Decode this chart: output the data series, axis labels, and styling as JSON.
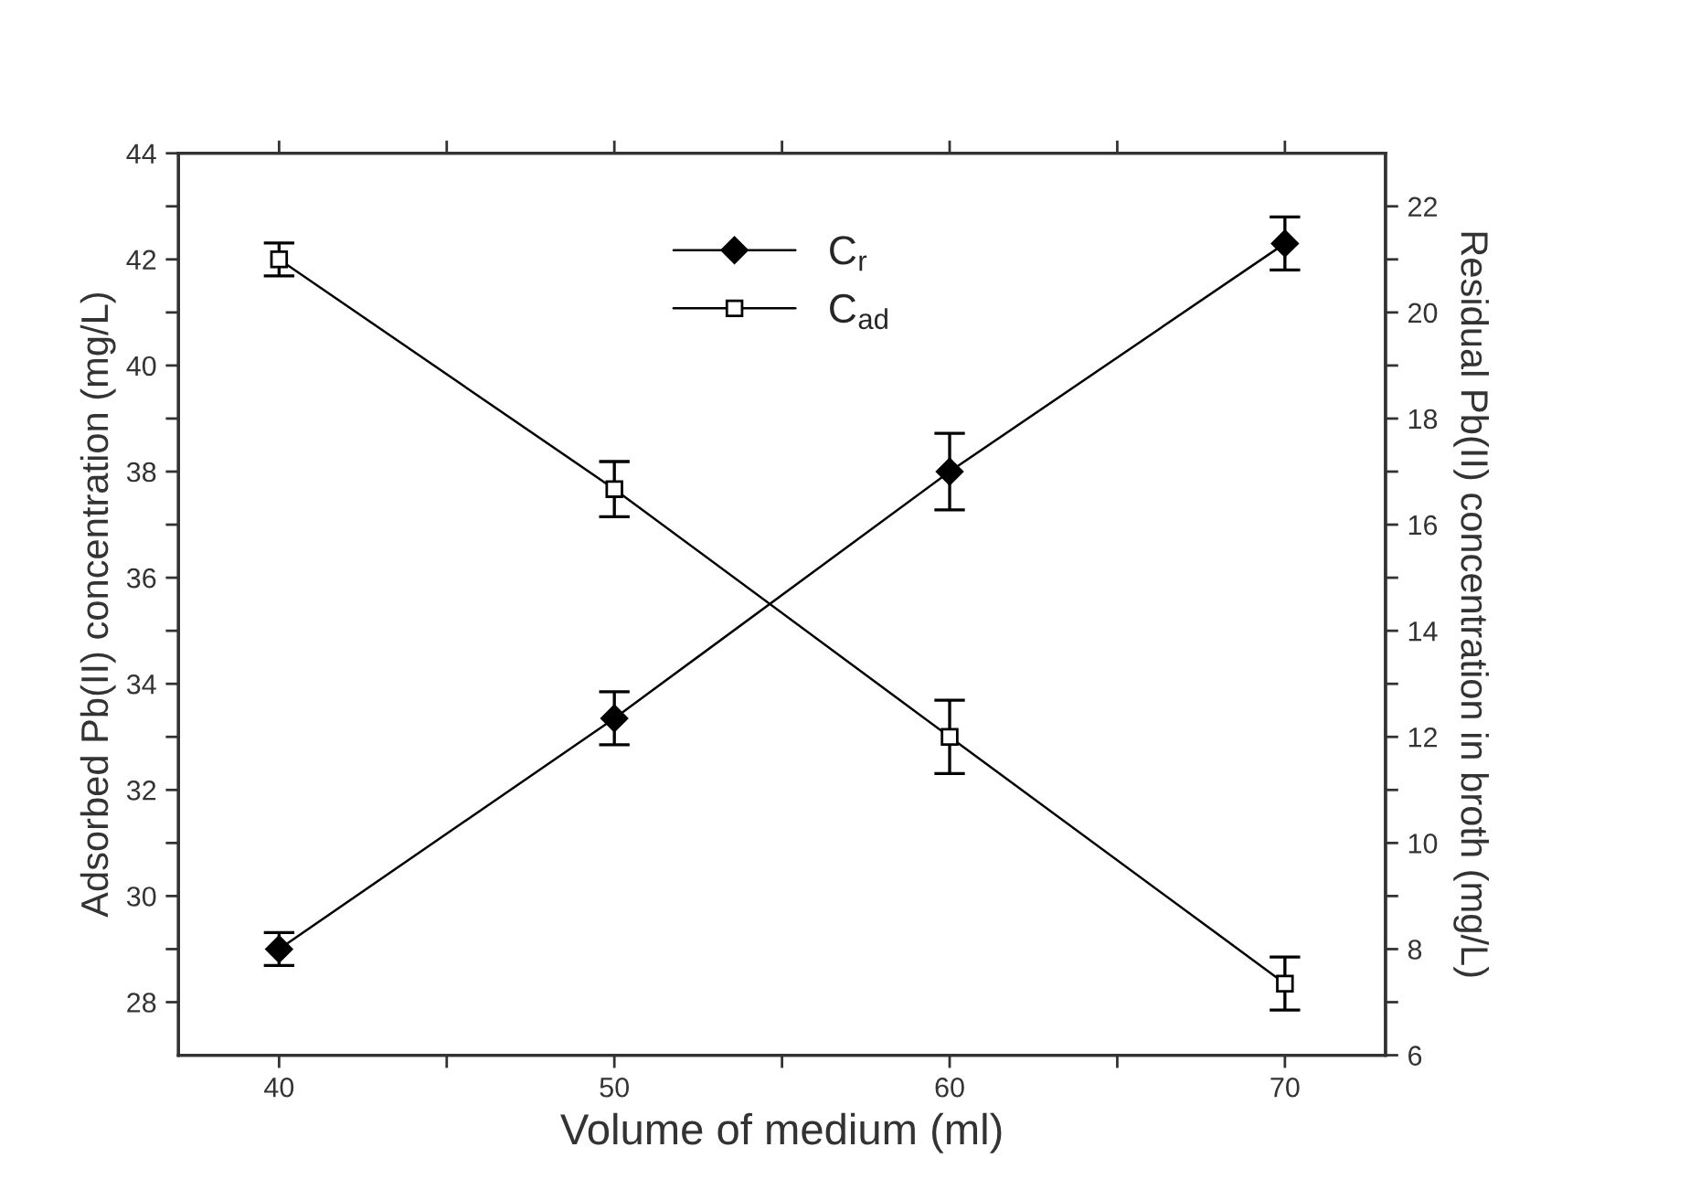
{
  "chart_data": {
    "type": "line",
    "xlabel": "Volume of medium (ml)",
    "ylabel": "Adsorbed Pb(II) concentration (mg/L)",
    "y2label": "Residual Pb(II) concentration in broth (mg/L)",
    "x": [
      40,
      50,
      60,
      70
    ],
    "series": [
      {
        "name": "C$_{r}$",
        "color": "#000000",
        "axis": "y2",
        "marker": "diamond",
        "values": [
          8.0,
          12.35,
          17.0,
          21.3
        ],
        "errors": [
          0.31,
          0.5,
          0.72,
          0.5
        ]
      },
      {
        "name": "C$_{ad}$",
        "color": "#000000",
        "marker": "square",
        "values": [
          42.0,
          37.67,
          33.0,
          28.35
        ],
        "errors": [
          0.31,
          0.52,
          0.69,
          0.5
        ]
      }
    ],
    "xlim": [
      37,
      73
    ],
    "xticks": [
      40,
      {
        "value": 45,
        "label": null
      },
      50,
      {
        "value": 55,
        "label": null
      },
      60,
      {
        "value": 65,
        "label": null
      },
      70
    ],
    "ylim": [
      27,
      44
    ],
    "yticks": [
      28,
      {
        "value": 29,
        "label": null
      },
      30,
      {
        "value": 31,
        "label": null
      },
      32,
      {
        "value": 33,
        "label": null
      },
      34,
      {
        "value": 35,
        "label": null
      },
      36,
      {
        "value": 37,
        "label": null
      },
      38,
      {
        "value": 39,
        "label": null
      },
      40,
      {
        "value": 41,
        "label": null
      },
      42,
      {
        "value": 43,
        "label": null
      },
      44
    ],
    "y2lim": [
      6,
      23
    ],
    "y2ticks": [
      6,
      {
        "value": 7,
        "label": null
      },
      8,
      {
        "value": 9,
        "label": null
      },
      10,
      {
        "value": 11,
        "label": null
      },
      12,
      {
        "value": 13,
        "label": null
      },
      14,
      {
        "value": 15,
        "label": null
      },
      16,
      {
        "value": 17,
        "label": null
      },
      18,
      {
        "value": 19,
        "label": null
      },
      20,
      {
        "value": 21,
        "label": null
      },
      22
    ],
    "legend": "top",
    "grid": false,
    "line_style": "solid"
  }
}
